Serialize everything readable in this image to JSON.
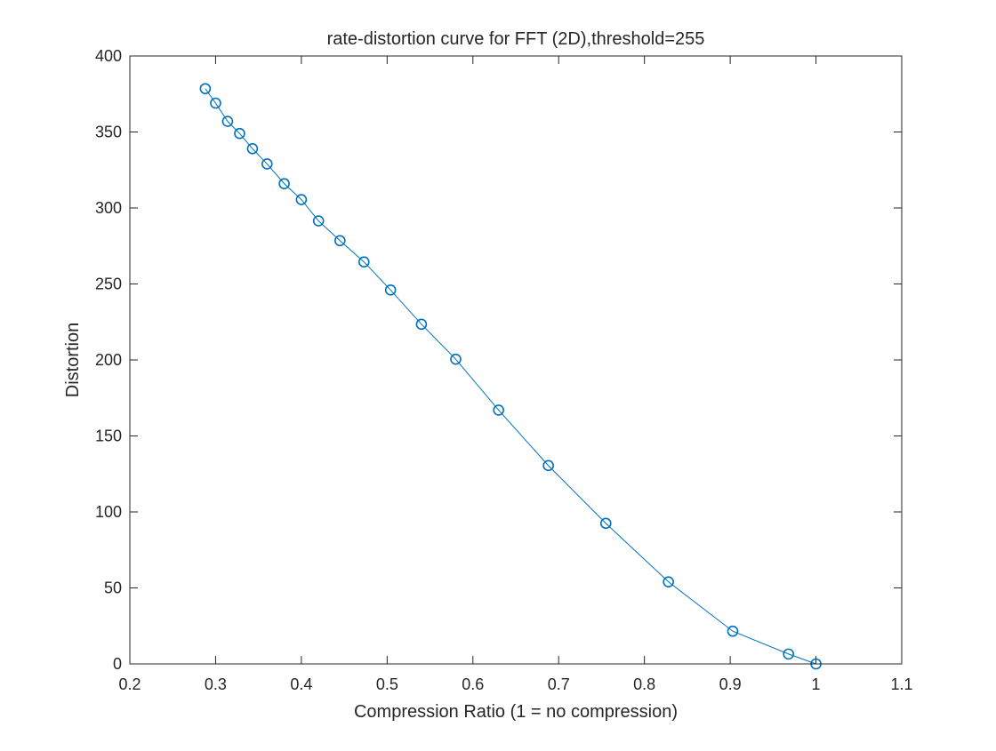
{
  "chart_data": {
    "type": "line",
    "title": "rate-distortion curve for FFT (2D),threshold=255",
    "xlabel": "Compression Ratio (1 = no compression)",
    "ylabel": "Distortion",
    "xlim": [
      0.2,
      1.1
    ],
    "ylim": [
      0,
      400
    ],
    "xticks": [
      0.2,
      0.3,
      0.4,
      0.5,
      0.6,
      0.7,
      0.8,
      0.9,
      1.0,
      1.1
    ],
    "xtick_labels": [
      "0.2",
      "0.3",
      "0.4",
      "0.5",
      "0.6",
      "0.7",
      "0.8",
      "0.9",
      "1",
      "1.1"
    ],
    "yticks": [
      0,
      50,
      100,
      150,
      200,
      250,
      300,
      350,
      400
    ],
    "ytick_labels": [
      "0",
      "50",
      "100",
      "150",
      "200",
      "250",
      "300",
      "350",
      "400"
    ],
    "grid": false,
    "marker": "circle",
    "line_color": "#0072BD",
    "series": [
      {
        "x": [
          0.288,
          0.3,
          0.314,
          0.328,
          0.343,
          0.36,
          0.38,
          0.4,
          0.42,
          0.445,
          0.473,
          0.504,
          0.54,
          0.58,
          0.63,
          0.688,
          0.755,
          0.828,
          0.903,
          0.968,
          1.0
        ],
        "y": [
          378.5,
          369.0,
          357.0,
          349.0,
          339.0,
          329.0,
          316.0,
          305.5,
          291.5,
          278.5,
          264.5,
          246.0,
          223.5,
          200.5,
          167.0,
          130.5,
          92.5,
          54.0,
          21.5,
          6.5,
          0.0
        ]
      }
    ]
  }
}
